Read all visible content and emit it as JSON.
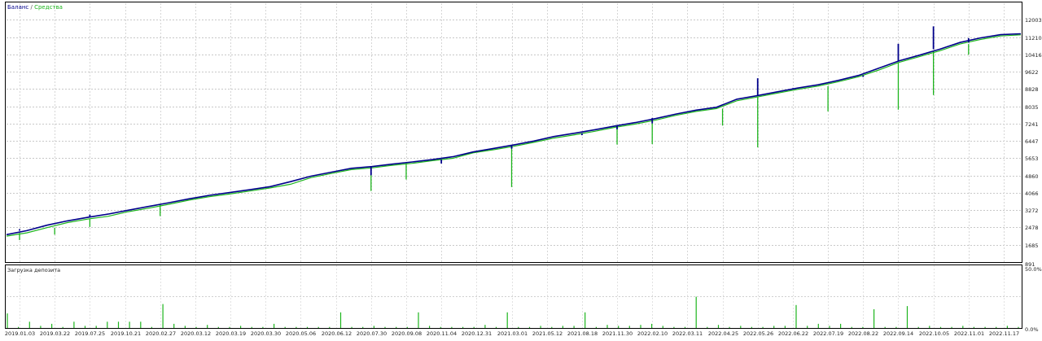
{
  "legend": {
    "balance_label": "Баланс",
    "separator": " / ",
    "equity_label": "Средства",
    "balance_color": "#00008b",
    "equity_color": "#1db51d"
  },
  "chart_data": [
    {
      "type": "line",
      "title": "",
      "xlabel": "",
      "ylabel": "",
      "grid": true,
      "legend_position": "top-left",
      "ylim": [
        891,
        12797
      ],
      "y_ticks": [
        "891",
        "1685",
        "2478",
        "3272",
        "4066",
        "4860",
        "5653",
        "6447",
        "7241",
        "8035",
        "8828",
        "9622",
        "10416",
        "11210",
        "12003"
      ],
      "x_ticks": [
        "2019.01.03",
        "2019.03.22",
        "2019.07.25",
        "2019.10.21",
        "2020.02.27",
        "2020.03.12",
        "2020.03.19",
        "2020.03.30",
        "2020.05.06",
        "2020.06.12",
        "2020.07.30",
        "2020.09.08",
        "2020.11.04",
        "2020.12.31",
        "2021.03.01",
        "2021.05.12",
        "2021.08.18",
        "2021.11.30",
        "2022.02.10",
        "2022.03.11",
        "2022.04.25",
        "2022.05.26",
        "2022.06.22",
        "2022.07.19",
        "2022.08.22",
        "2022.09.14",
        "2022.10.05",
        "2022.11.01",
        "2022.11.17"
      ],
      "series": [
        {
          "name": "Баланс",
          "color": "#00008b",
          "values": [
            2150,
            2330,
            2580,
            2780,
            2940,
            3090,
            3270,
            3440,
            3610,
            3790,
            3950,
            4080,
            4210,
            4350,
            4580,
            4830,
            5010,
            5190,
            5270,
            5380,
            5480,
            5590,
            5720,
            5940,
            6100,
            6260,
            6440,
            6650,
            6800,
            6960,
            7130,
            7290,
            7470,
            7680,
            7860,
            7990,
            8360,
            8520,
            8700,
            8870,
            9020,
            9220,
            9450,
            9780,
            10120,
            10380,
            10650,
            10960,
            11170,
            11320,
            11360
          ]
        },
        {
          "name": "Средства",
          "color": "#1db51d",
          "values": [
            2080,
            2230,
            2470,
            2700,
            2860,
            2990,
            3200,
            3360,
            3540,
            3730,
            3890,
            4010,
            4150,
            4290,
            4460,
            4760,
            4950,
            5130,
            5210,
            5330,
            5420,
            5540,
            5650,
            5900,
            6040,
            6200,
            6380,
            6580,
            6730,
            6890,
            7070,
            7220,
            7400,
            7620,
            7800,
            7930,
            8290,
            8460,
            8640,
            8810,
            8960,
            9160,
            9390,
            9700,
            10050,
            10310,
            10580,
            10890,
            11100,
            11260,
            11310
          ]
        }
      ],
      "balance_spikes": [
        {
          "date": "2019.01.03",
          "value": 2400
        },
        {
          "date": "2019.07.25",
          "value": 3070
        },
        {
          "date": "2020.07.30",
          "value": 4870
        },
        {
          "date": "2020.11.04",
          "value": 5410
        },
        {
          "date": "2021.03.01",
          "value": 6090
        },
        {
          "date": "2021.08.18",
          "value": 6710
        },
        {
          "date": "2021.11.30",
          "value": 6980
        },
        {
          "date": "2022.02.10",
          "value": 7250
        },
        {
          "date": "2022.02.10",
          "value": 7500
        },
        {
          "date": "2022.05.26",
          "value": 9320
        },
        {
          "date": "2022.06.22",
          "value": 8880
        },
        {
          "date": "2022.08.22",
          "value": 9380
        },
        {
          "date": "2022.09.14",
          "value": 10900
        },
        {
          "date": "2022.10.05",
          "value": 11700
        },
        {
          "date": "2022.11.01",
          "value": 11160
        }
      ],
      "equity_drawdowns": [
        {
          "date": "2019.01.03",
          "value": 1900
        },
        {
          "date": "2019.03.22",
          "value": 2150
        },
        {
          "date": "2019.07.25",
          "value": 2500
        },
        {
          "date": "2020.02.27",
          "value": 3000
        },
        {
          "date": "2020.07.30",
          "value": 4150
        },
        {
          "date": "2020.09.08",
          "value": 4680
        },
        {
          "date": "2021.03.01",
          "value": 4330
        },
        {
          "date": "2021.11.30",
          "value": 6280
        },
        {
          "date": "2022.02.10",
          "value": 6300
        },
        {
          "date": "2022.04.25",
          "value": 7150
        },
        {
          "date": "2022.05.26",
          "value": 6150
        },
        {
          "date": "2022.07.19",
          "value": 7800
        },
        {
          "date": "2022.09.14",
          "value": 7880
        },
        {
          "date": "2022.10.05",
          "value": 8550
        },
        {
          "date": "2022.11.01",
          "value": 10400
        }
      ]
    },
    {
      "type": "bar",
      "title": "Загрузка депозита",
      "xlabel": "",
      "ylabel": "",
      "ylim": [
        0,
        50
      ],
      "y_ticks": [
        "50.0%",
        "0.0%"
      ],
      "x_ticks": [
        "2019.01.03",
        "2019.03.22",
        "2019.07.25",
        "2019.10.21",
        "2020.02.27",
        "2020.03.12",
        "2020.03.19",
        "2020.03.30",
        "2020.05.06",
        "2020.06.12",
        "2020.07.30",
        "2020.09.08",
        "2020.11.04",
        "2020.12.31",
        "2021.03.01",
        "2021.05.12",
        "2021.08.18",
        "2021.11.30",
        "2022.02.10",
        "2022.03.11",
        "2022.04.25",
        "2022.05.26",
        "2022.06.22",
        "2022.07.19",
        "2022.08.22",
        "2022.09.14",
        "2022.10.05",
        "2022.11.01",
        "2022.11.17"
      ],
      "series": [
        {
          "name": "Загрузка депозита",
          "color": "#1db51d",
          "values": [
            14,
            1,
            6,
            2,
            4,
            1,
            6,
            2,
            2,
            6,
            6,
            6,
            6,
            1,
            23,
            4,
            2,
            1,
            3,
            1,
            1,
            2,
            1,
            1,
            4,
            1,
            1,
            1,
            1,
            1,
            15,
            1,
            1,
            2,
            1,
            1,
            1,
            15,
            2,
            1,
            1,
            1,
            1,
            3,
            1,
            15,
            1,
            1,
            2,
            1,
            2,
            2,
            15,
            1,
            3,
            2,
            2,
            3,
            4,
            2,
            1,
            1,
            30,
            1,
            3,
            1,
            2,
            1,
            1,
            2,
            2,
            22,
            2,
            4,
            2,
            4,
            1,
            1,
            18,
            1,
            1,
            21,
            1,
            2,
            1,
            1,
            2,
            1,
            1,
            1,
            2,
            1
          ]
        }
      ]
    }
  ]
}
